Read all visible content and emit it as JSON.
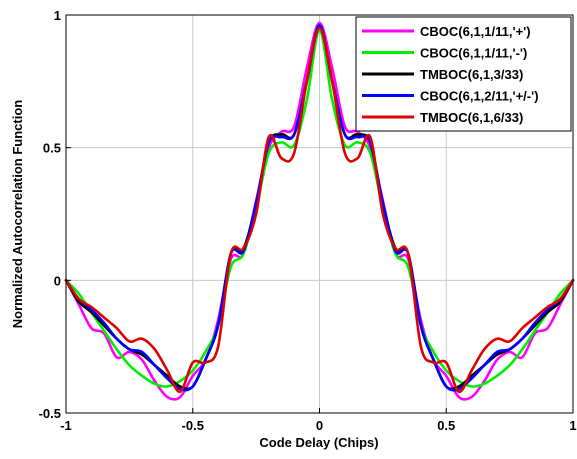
{
  "chart_data": {
    "type": "line",
    "title": "",
    "xlabel": "Code Delay (Chips)",
    "ylabel": "Normalized Autocorrelation Function",
    "xlim": [
      -1,
      1
    ],
    "ylim": [
      -0.5,
      1
    ],
    "xticks": [
      "-1",
      "-0.5",
      "0",
      "0.5",
      "1"
    ],
    "yticks": [
      "-0.5",
      "0",
      "0.5",
      "1"
    ],
    "grid": true,
    "legend_position": "top-right",
    "x": [
      -1.0,
      -0.95,
      -0.9,
      -0.85,
      -0.8,
      -0.75,
      -0.7,
      -0.65,
      -0.6,
      -0.55,
      -0.5,
      -0.45,
      -0.4,
      -0.35,
      -0.3,
      -0.25,
      -0.2,
      -0.15,
      -0.1,
      -0.05,
      0.0,
      0.05,
      0.1,
      0.15,
      0.2,
      0.25,
      0.3,
      0.35,
      0.4,
      0.45,
      0.5,
      0.55,
      0.6,
      0.65,
      0.7,
      0.75,
      0.8,
      0.85,
      0.9,
      0.95,
      1.0
    ],
    "series": [
      {
        "name": "CBOC(6,1,1/11,'+')",
        "color": "#ff00ff",
        "values": [
          0.0,
          -0.09,
          -0.18,
          -0.2,
          -0.29,
          -0.27,
          -0.3,
          -0.38,
          -0.44,
          -0.44,
          -0.36,
          -0.3,
          -0.15,
          0.08,
          0.1,
          0.3,
          0.5,
          0.56,
          0.58,
          0.8,
          0.97,
          0.8,
          0.58,
          0.56,
          0.5,
          0.3,
          0.1,
          0.08,
          -0.15,
          -0.3,
          -0.36,
          -0.44,
          -0.44,
          -0.38,
          -0.3,
          -0.27,
          -0.29,
          -0.2,
          -0.18,
          -0.09,
          0.0
        ]
      },
      {
        "name": "CBOC(6,1,1/11,'-')",
        "color": "#00ee00",
        "values": [
          0.0,
          -0.05,
          -0.12,
          -0.19,
          -0.26,
          -0.32,
          -0.36,
          -0.39,
          -0.4,
          -0.38,
          -0.34,
          -0.27,
          -0.17,
          0.05,
          0.1,
          0.27,
          0.48,
          0.52,
          0.51,
          0.68,
          0.94,
          0.68,
          0.51,
          0.52,
          0.48,
          0.27,
          0.1,
          0.05,
          -0.17,
          -0.27,
          -0.34,
          -0.38,
          -0.4,
          -0.39,
          -0.36,
          -0.32,
          -0.26,
          -0.19,
          -0.12,
          -0.05,
          0.0
        ]
      },
      {
        "name": "TMBOC(6,1,3/33)",
        "color": "#000000",
        "values": [
          0.0,
          -0.08,
          -0.12,
          -0.17,
          -0.22,
          -0.26,
          -0.28,
          -0.32,
          -0.36,
          -0.4,
          -0.4,
          -0.3,
          -0.17,
          0.1,
          0.12,
          0.29,
          0.52,
          0.55,
          0.55,
          0.75,
          0.96,
          0.75,
          0.55,
          0.55,
          0.52,
          0.29,
          0.12,
          0.1,
          -0.17,
          -0.3,
          -0.4,
          -0.4,
          -0.36,
          -0.32,
          -0.28,
          -0.26,
          -0.22,
          -0.17,
          -0.12,
          -0.08,
          0.0
        ]
      },
      {
        "name": "CBOC(6,1,2/11,'+/-')",
        "color": "#0000ff",
        "values": [
          0.0,
          -0.07,
          -0.11,
          -0.16,
          -0.22,
          -0.26,
          -0.27,
          -0.32,
          -0.37,
          -0.41,
          -0.4,
          -0.3,
          -0.17,
          0.1,
          0.11,
          0.29,
          0.52,
          0.54,
          0.55,
          0.75,
          0.96,
          0.75,
          0.55,
          0.54,
          0.52,
          0.29,
          0.11,
          0.1,
          -0.17,
          -0.3,
          -0.4,
          -0.41,
          -0.37,
          -0.32,
          -0.27,
          -0.26,
          -0.22,
          -0.16,
          -0.11,
          -0.07,
          0.0
        ]
      },
      {
        "name": "TMBOC(6,1,6/33)",
        "color": "#e00000",
        "values": [
          0.0,
          -0.07,
          -0.1,
          -0.14,
          -0.18,
          -0.23,
          -0.22,
          -0.26,
          -0.34,
          -0.42,
          -0.31,
          -0.31,
          -0.25,
          0.1,
          0.12,
          0.25,
          0.54,
          0.46,
          0.48,
          0.75,
          0.95,
          0.75,
          0.48,
          0.46,
          0.54,
          0.25,
          0.12,
          0.1,
          -0.25,
          -0.31,
          -0.31,
          -0.42,
          -0.34,
          -0.26,
          -0.22,
          -0.23,
          -0.18,
          -0.14,
          -0.1,
          -0.07,
          0.0
        ]
      }
    ]
  }
}
